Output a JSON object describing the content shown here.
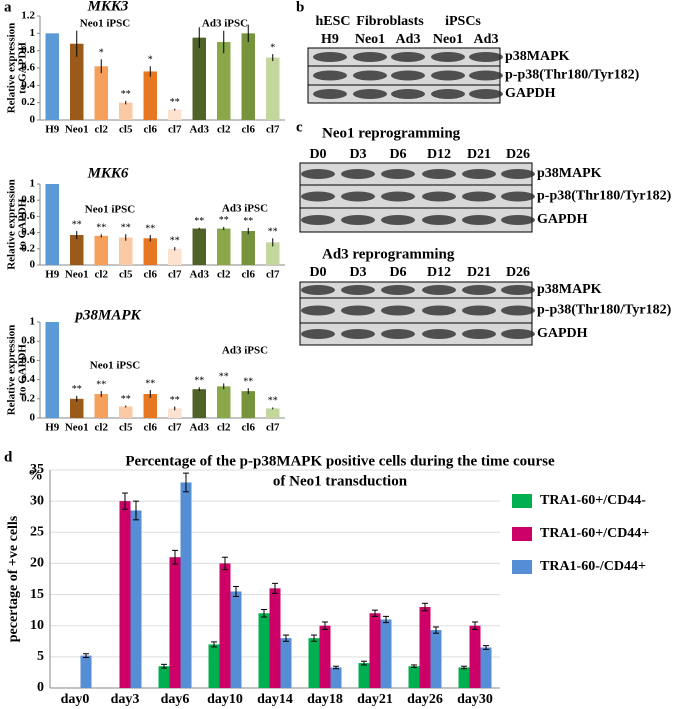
{
  "panel_labels": [
    "a",
    "b",
    "c",
    "d"
  ],
  "blots": [
    {
      "headers": [
        "hESC",
        "Fibroblasts",
        "iPSCs"
      ],
      "lanes": [
        "H9",
        "Neo1",
        "Ad3",
        "Neo1",
        "Ad3"
      ],
      "rows": [
        "p38MAPK",
        "p-p38(Thr180/Tyr182)",
        "GAPDH"
      ]
    },
    {
      "title": "Neo1 reprogramming",
      "lanes": [
        "D0",
        "D3",
        "D6",
        "D12",
        "D21",
        "D26"
      ],
      "rows": [
        "p38MAPK",
        "p-p38(Thr180/Tyr182)",
        "GAPDH"
      ]
    },
    {
      "title": "Ad3 reprogramming",
      "lanes": [
        "D0",
        "D3",
        "D6",
        "D12",
        "D21",
        "D26"
      ],
      "rows": [
        "p38MAPK",
        "p-p38(Thr180/Tyr182)",
        "GAPDH"
      ]
    }
  ],
  "chart_data": [
    {
      "type": "bar",
      "title": "MKK3",
      "y_label": [
        "Relative expression",
        "to GAPDH"
      ],
      "group_labels": [
        "Neo1 iPSC",
        "Ad3 iPSC"
      ],
      "categories": [
        "H9",
        "Neo1",
        "cl2",
        "cl5",
        "cl6",
        "cl7",
        "Ad3",
        "cl2",
        "cl6",
        "cl7"
      ],
      "values": [
        1.0,
        0.88,
        0.62,
        0.2,
        0.56,
        0.12,
        0.95,
        0.9,
        1.0,
        0.72
      ],
      "errors": [
        0,
        0.15,
        0.08,
        0.02,
        0.06,
        0.01,
        0.12,
        0.13,
        0.1,
        0.04
      ],
      "annotations": [
        null,
        null,
        "*",
        "**",
        "*",
        "**",
        null,
        null,
        null,
        "*"
      ],
      "colors": [
        "#5b9bd5",
        "#9c5a1a",
        "#f5a05a",
        "#fbc9a3",
        "#e87722",
        "#fde2cf",
        "#4f6228",
        "#8aa84a",
        "#77933c",
        "#c3d69b"
      ],
      "ylim": [
        0,
        1.2
      ],
      "yticks": [
        0,
        0.2,
        0.4,
        0.6,
        0.8,
        1,
        1.2
      ]
    },
    {
      "type": "bar",
      "title": "MKK6",
      "y_label": [
        "Relative expression",
        "to GAPDH"
      ],
      "group_labels": [
        "Neo1 iPSC",
        "Ad3 iPSC"
      ],
      "categories": [
        "H9",
        "Neo1",
        "cl2",
        "cl5",
        "cl6",
        "cl7",
        "Ad3",
        "cl2",
        "cl6",
        "cl7"
      ],
      "values": [
        1.0,
        0.37,
        0.36,
        0.34,
        0.33,
        0.2,
        0.45,
        0.45,
        0.42,
        0.28
      ],
      "errors": [
        0,
        0.05,
        0.02,
        0.04,
        0.04,
        0.02,
        0.01,
        0.02,
        0.04,
        0.05
      ],
      "annotations": [
        null,
        "**",
        "**",
        "**",
        "**",
        "**",
        "**",
        "**",
        "**",
        "**"
      ],
      "colors": [
        "#5b9bd5",
        "#9c5a1a",
        "#f5a05a",
        "#fbc9a3",
        "#e87722",
        "#fde2cf",
        "#4f6228",
        "#8aa84a",
        "#77933c",
        "#c3d69b"
      ],
      "ylim": [
        0,
        1
      ],
      "yticks": [
        0,
        0.2,
        0.4,
        0.6,
        0.8,
        1
      ]
    },
    {
      "type": "bar",
      "title": "p38MAPK",
      "y_label": [
        "Relative expression",
        "to GAPDH"
      ],
      "group_labels": [
        "Neo1 iPSC",
        "Ad3 iPSC"
      ],
      "categories": [
        "H9",
        "Neo1",
        "cl2",
        "cl5",
        "cl6",
        "cl7",
        "Ad3",
        "cl2",
        "cl6",
        "cl7"
      ],
      "values": [
        1.0,
        0.2,
        0.25,
        0.12,
        0.25,
        0.1,
        0.3,
        0.33,
        0.28,
        0.1
      ],
      "errors": [
        0,
        0.03,
        0.03,
        0.01,
        0.04,
        0.02,
        0.02,
        0.03,
        0.03,
        0.01
      ],
      "annotations": [
        null,
        "**",
        "**",
        "**",
        "**",
        "**",
        "**",
        "**",
        "**",
        "**"
      ],
      "colors": [
        "#5b9bd5",
        "#9c5a1a",
        "#f5a05a",
        "#fbc9a3",
        "#e87722",
        "#fde2cf",
        "#4f6228",
        "#8aa84a",
        "#77933c",
        "#c3d69b"
      ],
      "ylim": [
        0,
        1
      ],
      "yticks": [
        0,
        0.2,
        0.4,
        0.6,
        0.8,
        1
      ]
    },
    {
      "type": "grouped_bar",
      "title": [
        "Percentage of the p-p38MAPK positive cells during the time course",
        "of Neo1 transduction"
      ],
      "y_label": "pecertage of +ve cells",
      "y_unit": "%",
      "categories": [
        "day0",
        "day3",
        "day6",
        "day10",
        "day14",
        "day18",
        "day21",
        "day26",
        "day30"
      ],
      "series": [
        {
          "name": "TRA1-60+/CD44-",
          "color": "#00b050",
          "values": [
            null,
            null,
            3.5,
            7,
            12,
            8,
            4,
            3.5,
            3.3
          ],
          "errors": [
            null,
            null,
            0.3,
            0.4,
            0.6,
            0.5,
            0.3,
            0.2,
            0.2
          ]
        },
        {
          "name": "TRA1-60+/CD44+",
          "color": "#cc0066",
          "values": [
            null,
            30,
            21,
            20,
            16,
            10,
            12,
            13,
            10
          ],
          "errors": [
            null,
            1.3,
            1.1,
            1.0,
            0.8,
            0.6,
            0.5,
            0.6,
            0.6
          ]
        },
        {
          "name": "TRA1-60-/CD44+",
          "color": "#558ed5",
          "values": [
            5.2,
            28.5,
            33,
            15.5,
            8,
            3.3,
            11,
            9.3,
            6.5
          ],
          "errors": [
            0.3,
            1.5,
            1.5,
            0.8,
            0.5,
            0.2,
            0.5,
            0.5,
            0.3
          ]
        }
      ],
      "ylim": [
        0,
        35
      ],
      "yticks": [
        0,
        5,
        10,
        15,
        20,
        25,
        30,
        35
      ]
    }
  ]
}
